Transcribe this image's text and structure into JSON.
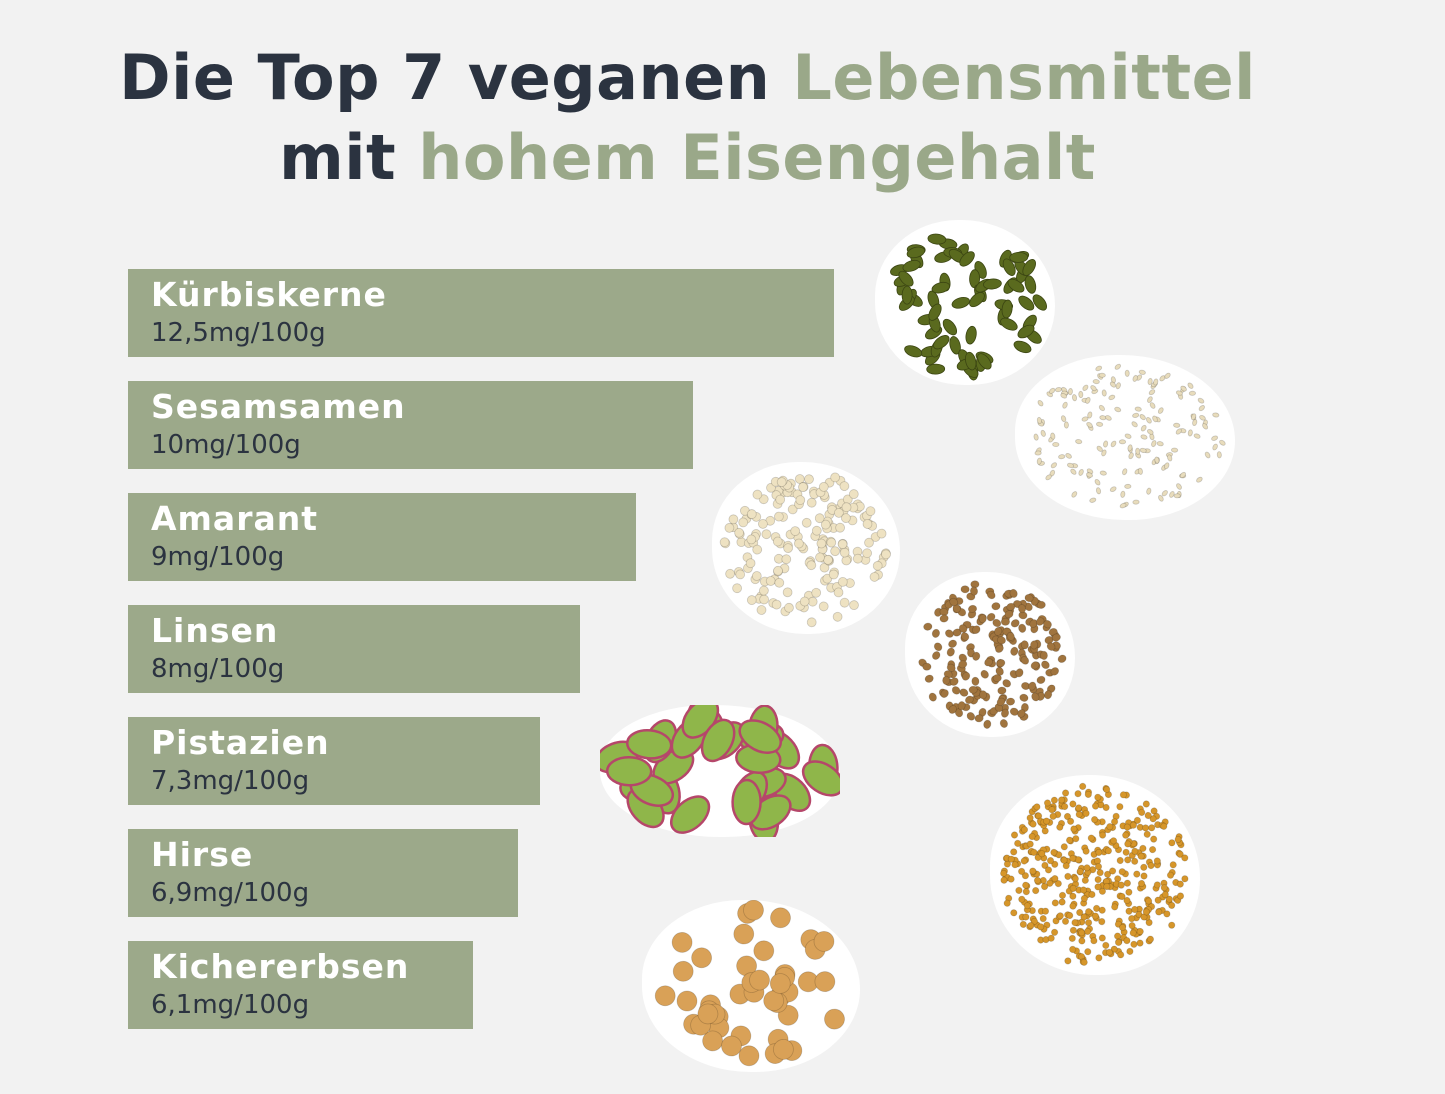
{
  "title": {
    "line1_dark": "Die Top 7 veganen",
    "line1_accent": "Lebensmittel",
    "line2_dark": "mit",
    "line2_accent": "hohem Eisengehalt"
  },
  "colors": {
    "bar": "#9ca98a",
    "title_dark": "#2b3340",
    "title_accent": "#9aa889",
    "background": "#f2f2f2"
  },
  "chart_data": {
    "type": "bar",
    "orientation": "horizontal",
    "unit": "mg/100g",
    "categories": [
      "Kürbiskerne",
      "Sesamsamen",
      "Amarant",
      "Linsen",
      "Pistazien",
      "Hirse",
      "Kichererbsen"
    ],
    "values": [
      12.5,
      10,
      9,
      8,
      7.3,
      6.9,
      6.1
    ],
    "value_labels": [
      "12,5mg/100g",
      "10mg/100g",
      "9mg/100g",
      "8mg/100g",
      "7,3mg/100g",
      "6,9mg/100g",
      "6,1mg/100g"
    ]
  },
  "images": [
    {
      "name": "kuerbiskerne-image",
      "icon": "pumpkin-seeds",
      "color": "#5a6a1e"
    },
    {
      "name": "sesamsamen-image",
      "icon": "sesame-seeds",
      "color": "#e8dcbc"
    },
    {
      "name": "amarant-image",
      "icon": "amaranth-grains",
      "color": "#eee2c2"
    },
    {
      "name": "linsen-image",
      "icon": "lentils",
      "color": "#a0743e"
    },
    {
      "name": "pistazien-image",
      "icon": "pistachios",
      "color": "#8fb64a"
    },
    {
      "name": "hirse-image",
      "icon": "millet",
      "color": "#d6962a"
    },
    {
      "name": "kichererbsen-image",
      "icon": "chickpeas",
      "color": "#d9a157"
    }
  ]
}
